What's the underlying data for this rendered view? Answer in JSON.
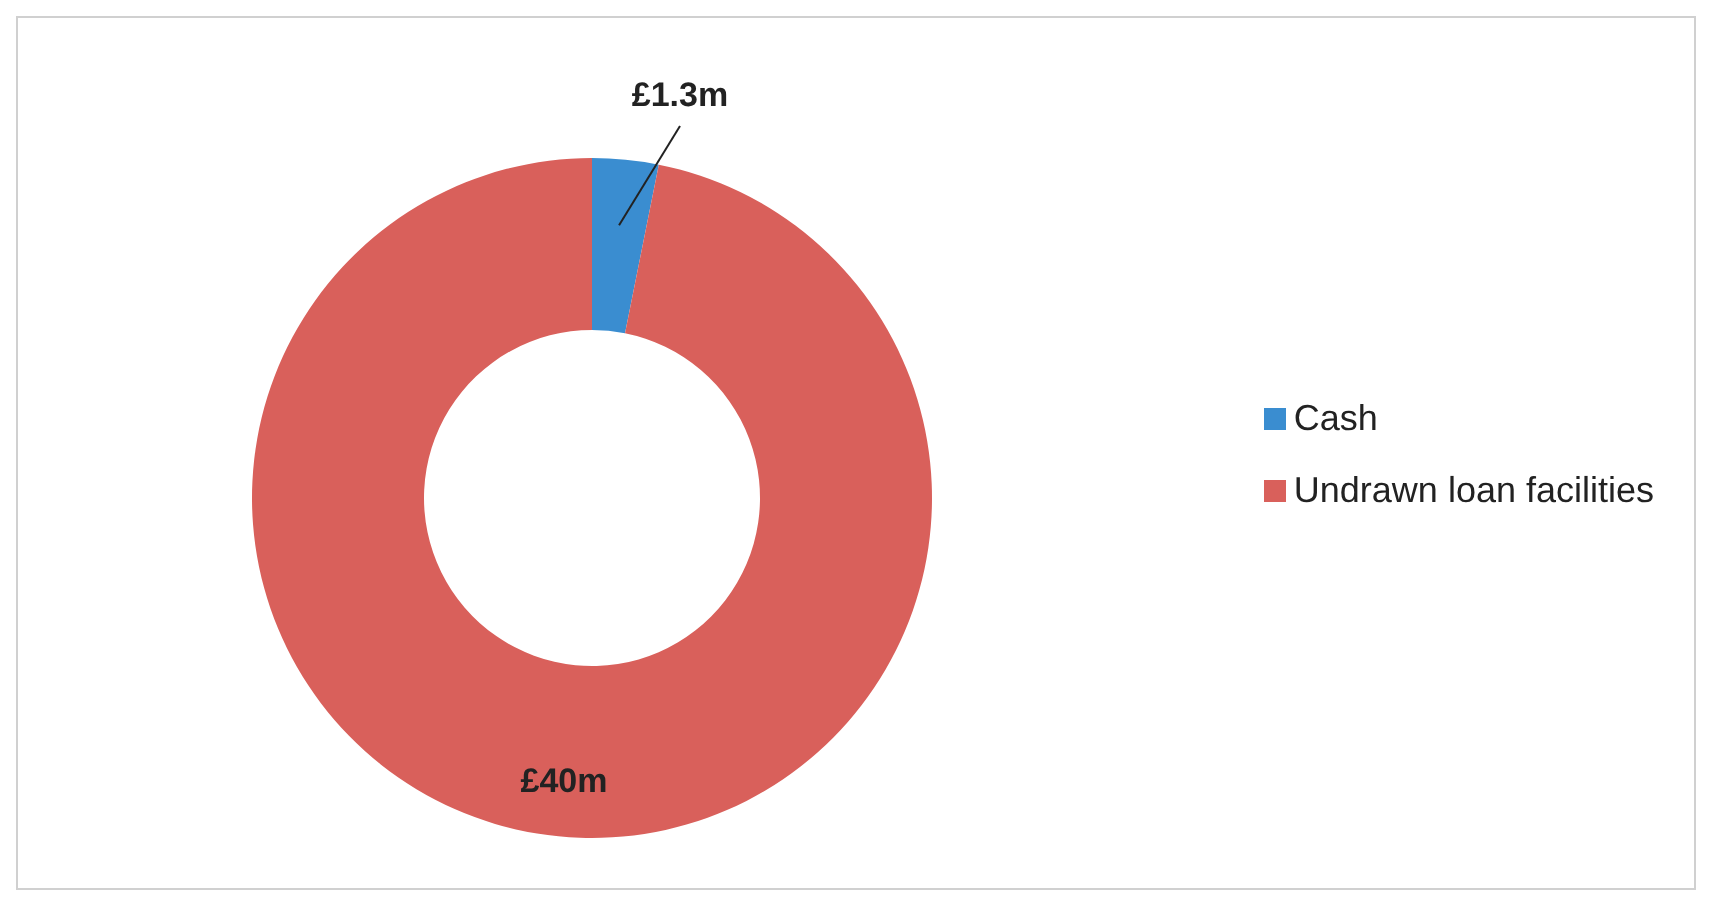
{
  "chart_data": {
    "type": "donut",
    "categories": [
      "Cash",
      "Undrawn loan facilities"
    ],
    "values": [
      1.3,
      40
    ],
    "colors": [
      "#3a8dd0",
      "#d9605b"
    ],
    "value_labels": [
      "£1.3m",
      "£40m"
    ],
    "legend": "right"
  }
}
